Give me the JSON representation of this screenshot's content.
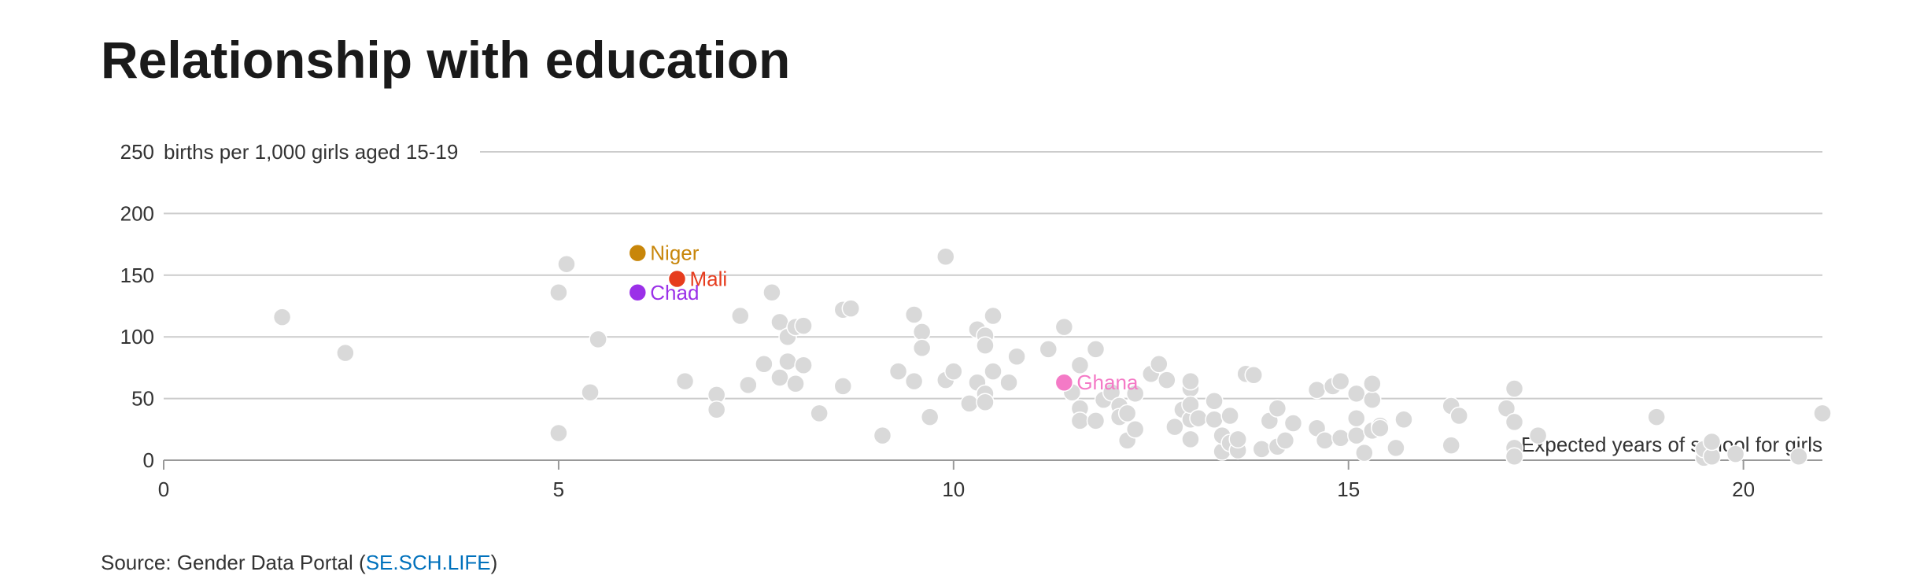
{
  "title": "Relationship with education",
  "source": {
    "prefix": "Source: Gender Data Portal (",
    "link": "SE.SCH.LIFE",
    "suffix": ")"
  },
  "colors": {
    "background_points": "#d9d9d9",
    "Niger": "#c8860a",
    "Mali": "#e63c1e",
    "Chad": "#9b30e8",
    "Ghana": "#f47ac6",
    "grid": "#cccccc",
    "axis": "#999999",
    "link": "#0071bc"
  },
  "chart_data": {
    "type": "scatter",
    "title": "Relationship with education",
    "ylabel": "births per 1,000 girls aged 15-19",
    "xlabel": "Expected years of school for girls",
    "xlim": [
      0,
      21
    ],
    "ylim": [
      0,
      250
    ],
    "x_ticks": [
      0,
      5,
      10,
      15,
      20
    ],
    "y_ticks": [
      0,
      50,
      100,
      150,
      200,
      250
    ],
    "grid": "horizontal",
    "highlighted": [
      {
        "name": "Niger",
        "x": 6.0,
        "y": 168
      },
      {
        "name": "Mali",
        "x": 6.5,
        "y": 147
      },
      {
        "name": "Chad",
        "x": 6.0,
        "y": 136
      },
      {
        "name": "Ghana",
        "x": 11.4,
        "y": 63
      }
    ],
    "points": [
      [
        1.5,
        116
      ],
      [
        2.3,
        87
      ],
      [
        5.0,
        136
      ],
      [
        5.1,
        159
      ],
      [
        5.0,
        22
      ],
      [
        5.4,
        55
      ],
      [
        5.5,
        98
      ],
      [
        6.6,
        64
      ],
      [
        7.0,
        53
      ],
      [
        7.0,
        41
      ],
      [
        7.3,
        117
      ],
      [
        7.4,
        61
      ],
      [
        7.6,
        78
      ],
      [
        7.7,
        136
      ],
      [
        7.8,
        67
      ],
      [
        7.8,
        112
      ],
      [
        7.9,
        100
      ],
      [
        7.9,
        80
      ],
      [
        8.0,
        108
      ],
      [
        8.0,
        62
      ],
      [
        8.1,
        109
      ],
      [
        8.1,
        77
      ],
      [
        8.3,
        38
      ],
      [
        8.6,
        122
      ],
      [
        8.6,
        60
      ],
      [
        8.7,
        123
      ],
      [
        9.1,
        20
      ],
      [
        9.3,
        72
      ],
      [
        9.5,
        118
      ],
      [
        9.5,
        64
      ],
      [
        9.6,
        104
      ],
      [
        9.6,
        91
      ],
      [
        9.7,
        35
      ],
      [
        9.9,
        165
      ],
      [
        9.9,
        65
      ],
      [
        10.0,
        72
      ],
      [
        10.2,
        46
      ],
      [
        10.3,
        106
      ],
      [
        10.3,
        63
      ],
      [
        10.4,
        54
      ],
      [
        10.4,
        101
      ],
      [
        10.4,
        93
      ],
      [
        10.4,
        47
      ],
      [
        10.5,
        72
      ],
      [
        10.5,
        117
      ],
      [
        10.7,
        63
      ],
      [
        10.8,
        84
      ],
      [
        11.2,
        90
      ],
      [
        11.4,
        108
      ],
      [
        11.5,
        55
      ],
      [
        11.6,
        77
      ],
      [
        11.6,
        42
      ],
      [
        11.6,
        32
      ],
      [
        11.8,
        90
      ],
      [
        11.8,
        32
      ],
      [
        11.9,
        49
      ],
      [
        12.0,
        55
      ],
      [
        12.1,
        44
      ],
      [
        12.1,
        35
      ],
      [
        12.2,
        16
      ],
      [
        12.2,
        38
      ],
      [
        12.3,
        25
      ],
      [
        12.3,
        54
      ],
      [
        12.5,
        70
      ],
      [
        12.6,
        78
      ],
      [
        12.7,
        65
      ],
      [
        12.8,
        27
      ],
      [
        12.9,
        41
      ],
      [
        13.0,
        33
      ],
      [
        13.0,
        58
      ],
      [
        13.0,
        45
      ],
      [
        13.0,
        17
      ],
      [
        13.0,
        64
      ],
      [
        13.1,
        34
      ],
      [
        13.3,
        48
      ],
      [
        13.3,
        33
      ],
      [
        13.4,
        7
      ],
      [
        13.4,
        20
      ],
      [
        13.5,
        36
      ],
      [
        13.5,
        14
      ],
      [
        13.6,
        8
      ],
      [
        13.6,
        17
      ],
      [
        13.7,
        70
      ],
      [
        13.8,
        69
      ],
      [
        13.9,
        9
      ],
      [
        14.0,
        32
      ],
      [
        14.0,
        32
      ],
      [
        14.1,
        42
      ],
      [
        14.1,
        11
      ],
      [
        14.2,
        16
      ],
      [
        14.3,
        30
      ],
      [
        14.6,
        57
      ],
      [
        14.6,
        26
      ],
      [
        14.7,
        16
      ],
      [
        14.8,
        60
      ],
      [
        14.9,
        64
      ],
      [
        14.9,
        18
      ],
      [
        15.1,
        54
      ],
      [
        15.1,
        34
      ],
      [
        15.1,
        20
      ],
      [
        15.2,
        6
      ],
      [
        15.3,
        49
      ],
      [
        15.3,
        24
      ],
      [
        15.3,
        62
      ],
      [
        15.4,
        28
      ],
      [
        15.4,
        26
      ],
      [
        15.6,
        10
      ],
      [
        15.7,
        33
      ],
      [
        16.3,
        44
      ],
      [
        16.3,
        12
      ],
      [
        16.4,
        36
      ],
      [
        17.0,
        42
      ],
      [
        17.1,
        31
      ],
      [
        17.1,
        58
      ],
      [
        17.1,
        10
      ],
      [
        17.1,
        3
      ],
      [
        17.4,
        20
      ],
      [
        18.9,
        35
      ],
      [
        19.5,
        2
      ],
      [
        19.5,
        9
      ],
      [
        19.6,
        3
      ],
      [
        19.6,
        15
      ],
      [
        19.9,
        5
      ],
      [
        20.7,
        3
      ],
      [
        21.0,
        38
      ]
    ]
  }
}
